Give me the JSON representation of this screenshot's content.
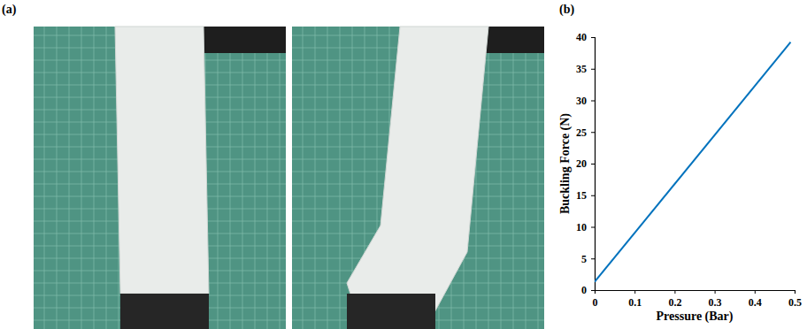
{
  "chart_data": {
    "type": "line",
    "annotations": [
      "(a)",
      "(b)"
    ],
    "x_label": "Pressure (Bar)",
    "y_label": "Buckling Force (N)",
    "x": [
      0,
      0.49
    ],
    "values": [
      1.3,
      39.2
    ],
    "color": "#0072bd",
    "xlim": [
      0,
      0.5
    ],
    "xticks": [
      0,
      0.1,
      0.2,
      0.3,
      0.4,
      0.5
    ],
    "ylim": [
      0,
      40
    ],
    "yticks": [
      0,
      5,
      10,
      15,
      20,
      25,
      30,
      35,
      40
    ],
    "grid": false
  }
}
